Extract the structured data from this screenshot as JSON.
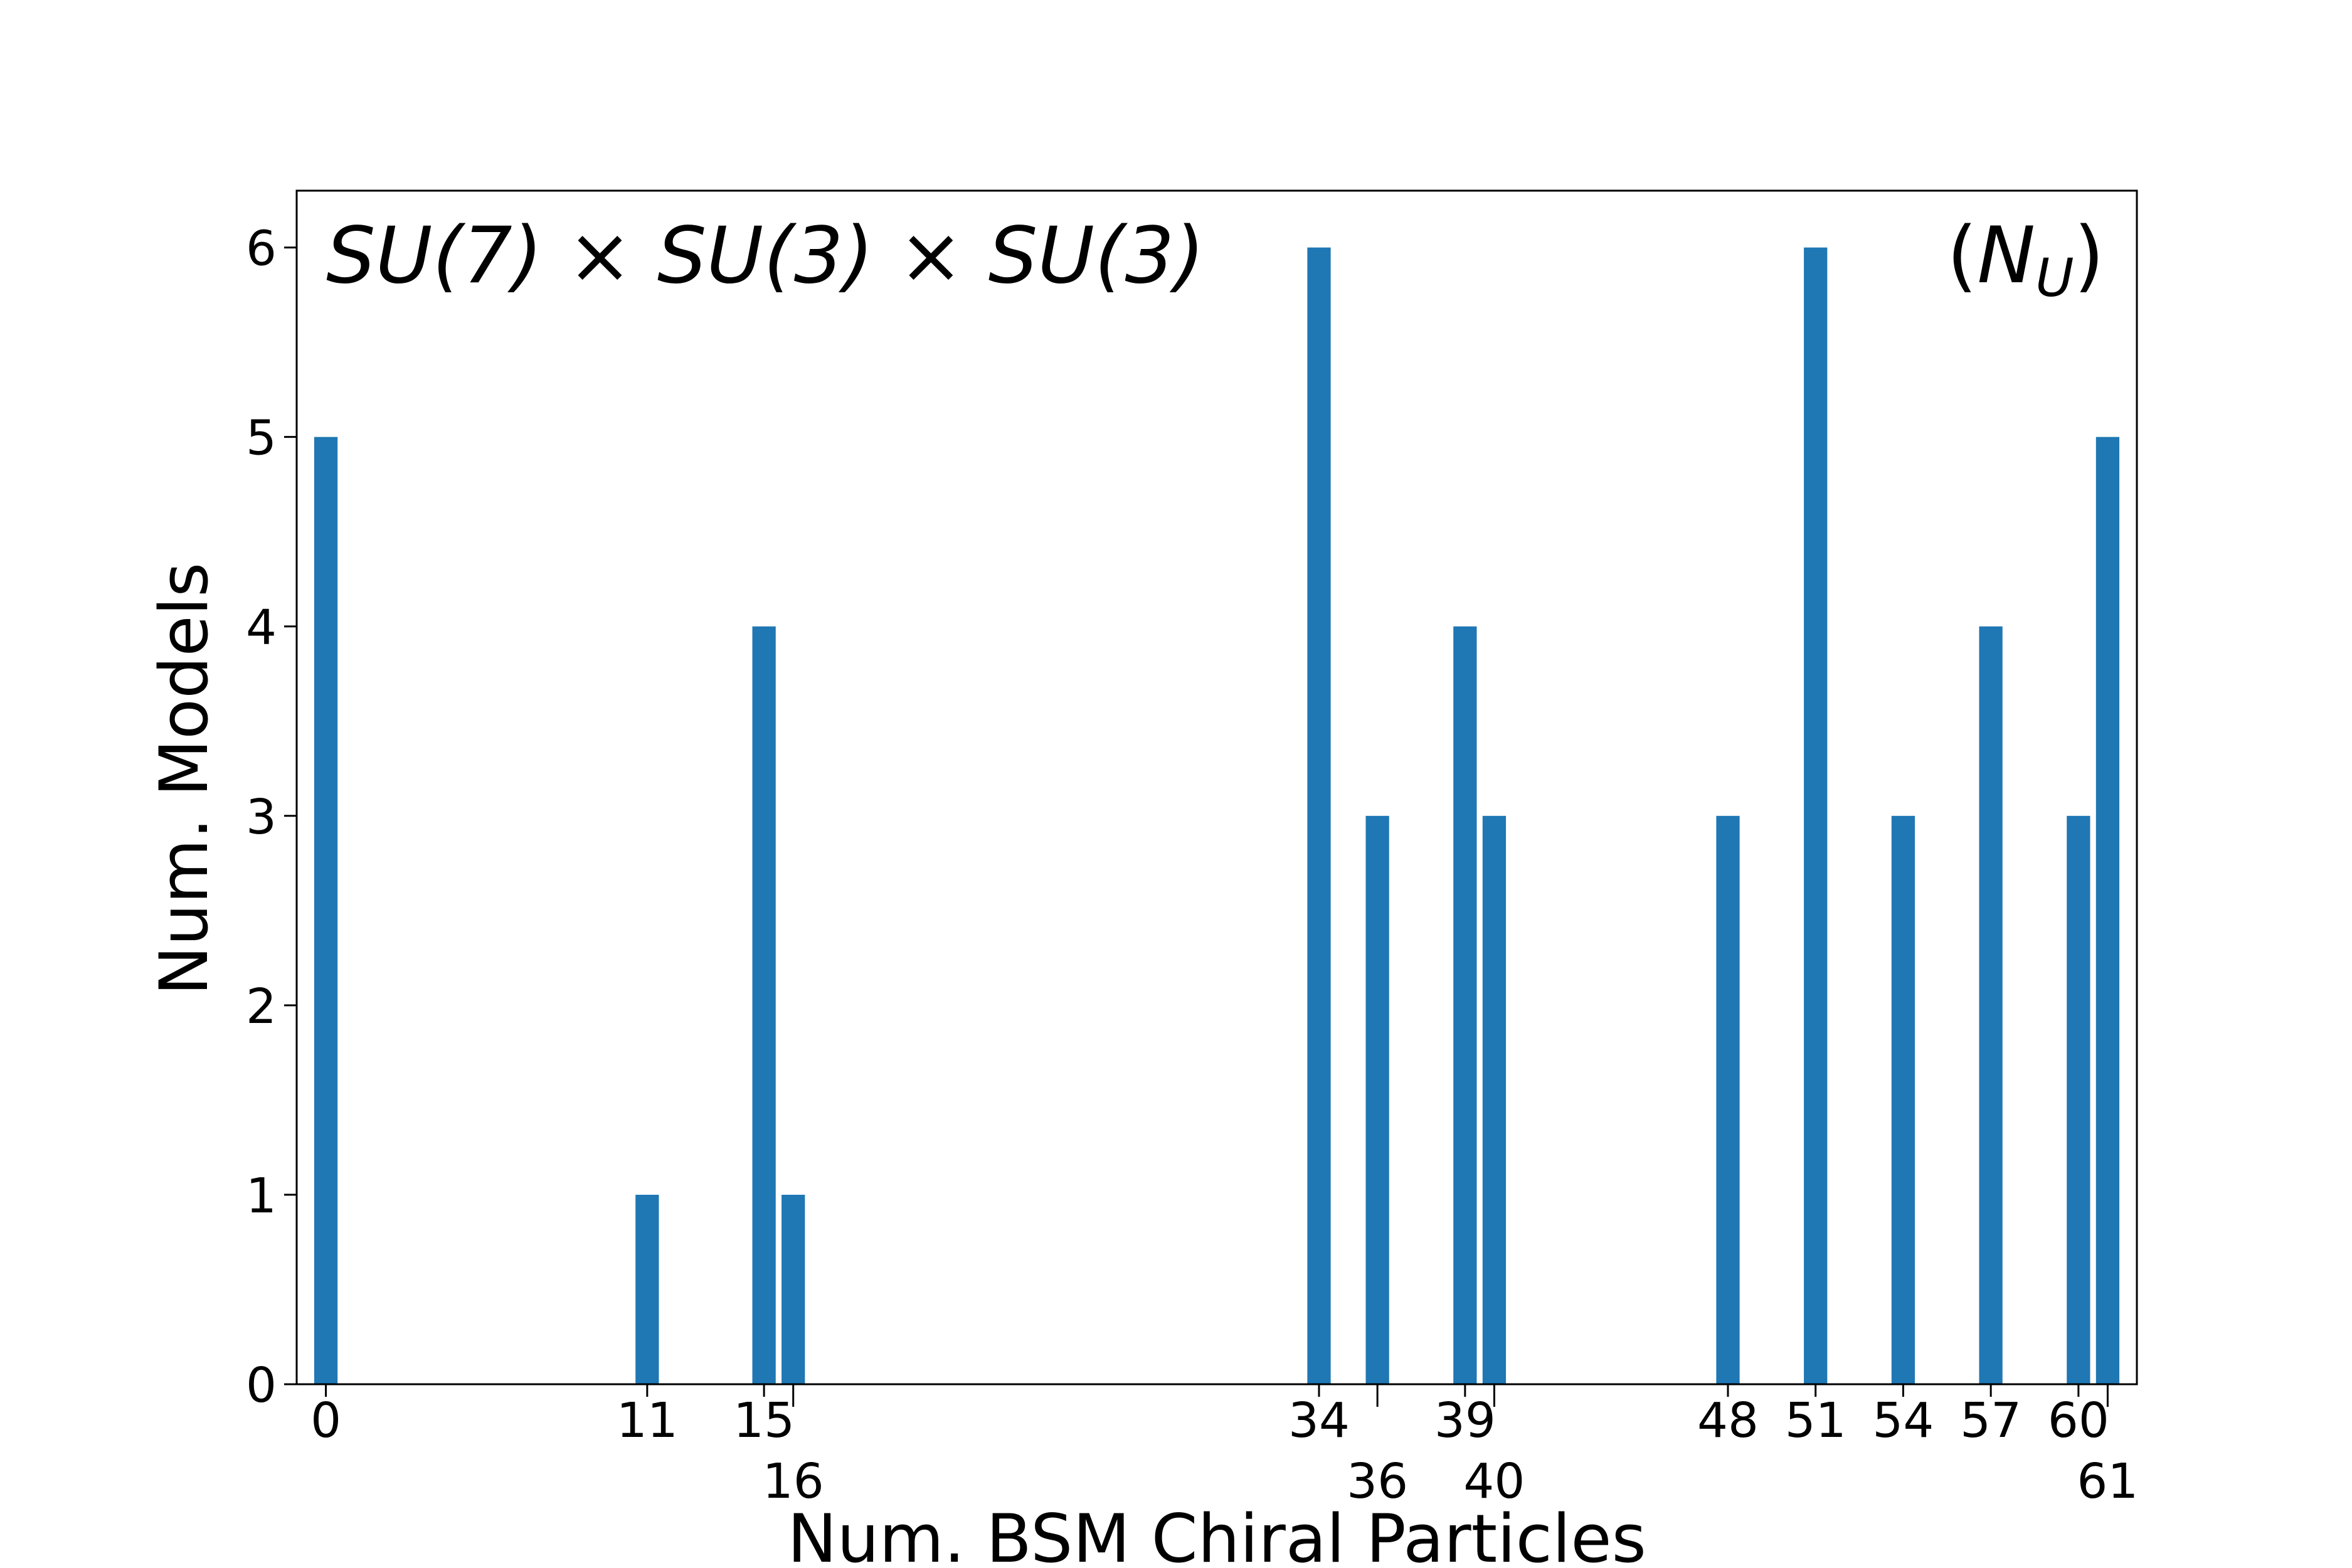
{
  "chart_data": {
    "type": "bar",
    "x": [
      0,
      11,
      15,
      16,
      34,
      36,
      39,
      40,
      48,
      51,
      54,
      57,
      60,
      61
    ],
    "values": [
      5,
      1,
      4,
      1,
      6,
      3,
      4,
      3,
      3,
      6,
      3,
      4,
      3,
      5
    ],
    "color": "#1f77b4",
    "xlabel": "Num. BSM Chiral Particles",
    "ylabel": "Num. Models",
    "xlim": [
      -1,
      62
    ],
    "ylim": [
      0,
      6.3
    ],
    "xticks": [
      0,
      11,
      15,
      16,
      34,
      36,
      39,
      40,
      48,
      51,
      54,
      57,
      60,
      61
    ],
    "yticks": [
      0,
      1,
      2,
      3,
      4,
      5,
      6
    ],
    "annotations": [
      {
        "text": "SU(7) × SU(3) × SU(3)"
      },
      {
        "prefix": "(",
        "base": "N",
        "subscript": "U",
        "suffix": ")"
      }
    ],
    "grid": false
  }
}
